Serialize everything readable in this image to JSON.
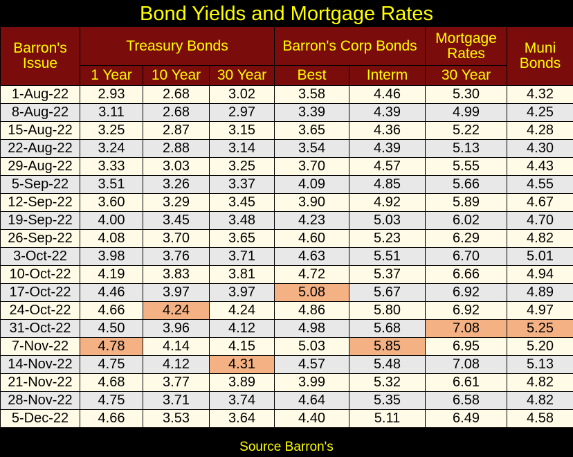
{
  "chart_data": {
    "type": "table",
    "title": "Bond Yields and Mortgage Rates",
    "source": "Source Barron's",
    "group_headers": {
      "issue": "Barron's Issue",
      "treasury": "Treasury Bonds",
      "corp": "Barron's Corp Bonds",
      "mortgage": "Mortgage Rates",
      "muni": "Muni Bonds"
    },
    "sub_headers": {
      "t1": "1 Year",
      "t10": "10 Year",
      "t30": "30 Year",
      "best": "Best",
      "interm": "Interm",
      "m30": "30 Year"
    },
    "rows": [
      [
        "1-Aug-22",
        "2.93",
        "2.68",
        "3.02",
        "3.58",
        "4.46",
        "5.30",
        "4.32"
      ],
      [
        "8-Aug-22",
        "3.11",
        "2.68",
        "2.97",
        "3.39",
        "4.39",
        "4.99",
        "4.25"
      ],
      [
        "15-Aug-22",
        "3.25",
        "2.87",
        "3.15",
        "3.65",
        "4.36",
        "5.22",
        "4.28"
      ],
      [
        "22-Aug-22",
        "3.24",
        "2.88",
        "3.14",
        "3.54",
        "4.39",
        "5.13",
        "4.30"
      ],
      [
        "29-Aug-22",
        "3.33",
        "3.03",
        "3.25",
        "3.70",
        "4.57",
        "5.55",
        "4.43"
      ],
      [
        "5-Sep-22",
        "3.51",
        "3.26",
        "3.37",
        "4.09",
        "4.85",
        "5.66",
        "4.55"
      ],
      [
        "12-Sep-22",
        "3.60",
        "3.29",
        "3.45",
        "3.90",
        "4.92",
        "5.89",
        "4.67"
      ],
      [
        "19-Sep-22",
        "4.00",
        "3.45",
        "3.48",
        "4.23",
        "5.03",
        "6.02",
        "4.70"
      ],
      [
        "26-Sep-22",
        "4.08",
        "3.70",
        "3.65",
        "4.60",
        "5.23",
        "6.29",
        "4.82"
      ],
      [
        "3-Oct-22",
        "3.98",
        "3.76",
        "3.71",
        "4.63",
        "5.51",
        "6.70",
        "5.01"
      ],
      [
        "10-Oct-22",
        "4.19",
        "3.83",
        "3.81",
        "4.72",
        "5.37",
        "6.66",
        "4.94"
      ],
      [
        "17-Oct-22",
        "4.46",
        "3.97",
        "3.97",
        "5.08",
        "5.67",
        "6.92",
        "4.89"
      ],
      [
        "24-Oct-22",
        "4.66",
        "4.24",
        "4.24",
        "4.86",
        "5.80",
        "6.92",
        "4.97"
      ],
      [
        "31-Oct-22",
        "4.50",
        "3.96",
        "4.12",
        "4.98",
        "5.68",
        "7.08",
        "5.25"
      ],
      [
        "7-Nov-22",
        "4.78",
        "4.14",
        "4.15",
        "5.03",
        "5.85",
        "6.95",
        "5.20"
      ],
      [
        "14-Nov-22",
        "4.75",
        "4.12",
        "4.31",
        "4.57",
        "5.48",
        "7.08",
        "5.13"
      ],
      [
        "21-Nov-22",
        "4.68",
        "3.77",
        "3.89",
        "3.99",
        "5.32",
        "6.61",
        "4.82"
      ],
      [
        "28-Nov-22",
        "4.75",
        "3.71",
        "3.74",
        "4.64",
        "5.35",
        "6.58",
        "4.82"
      ],
      [
        "5-Dec-22",
        "4.66",
        "3.53",
        "3.64",
        "4.40",
        "5.11",
        "6.49",
        "4.58"
      ]
    ],
    "highlighted_cells": [
      [
        14,
        1
      ],
      [
        12,
        2
      ],
      [
        15,
        3
      ],
      [
        11,
        4
      ],
      [
        14,
        5
      ],
      [
        13,
        6
      ],
      [
        13,
        7
      ]
    ],
    "colors": {
      "header_bg": "#7a0c0c",
      "header_text": "#ffff00",
      "row_odd": "#fffbe6",
      "row_even": "#e8e8e8",
      "highlight": "#f4b183",
      "background": "#000000"
    }
  }
}
